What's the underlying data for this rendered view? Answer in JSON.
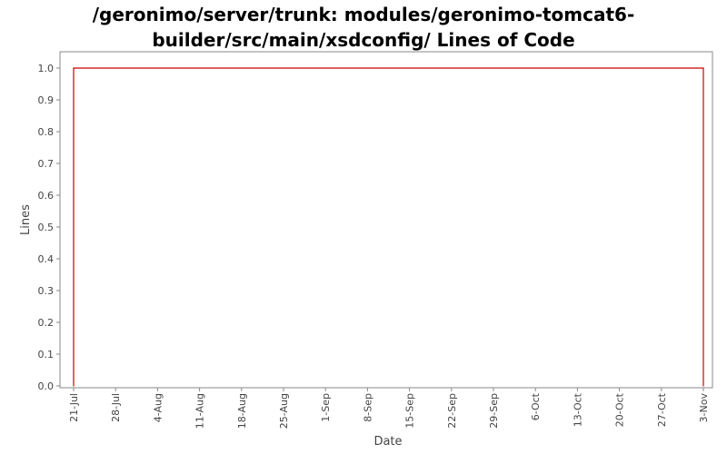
{
  "chart_data": {
    "type": "line",
    "title_lines": [
      "/geronimo/server/trunk: modules/geronimo-tomcat6-",
      "builder/src/main/xsdconfig/ Lines of Code"
    ],
    "xlabel": "Date",
    "ylabel": "Lines",
    "x_ticks": [
      "21-Jul",
      "28-Jul",
      "4-Aug",
      "11-Aug",
      "18-Aug",
      "25-Aug",
      "1-Sep",
      "8-Sep",
      "15-Sep",
      "22-Sep",
      "29-Sep",
      "6-Oct",
      "13-Oct",
      "20-Oct",
      "27-Oct",
      "3-Nov"
    ],
    "y_ticks": [
      "0.0",
      "0.1",
      "0.2",
      "0.3",
      "0.4",
      "0.5",
      "0.6",
      "0.7",
      "0.8",
      "0.9",
      "1.0"
    ],
    "ylim": [
      0,
      1.0
    ],
    "grid": false,
    "series": [
      {
        "color": "#cc0000",
        "points": [
          {
            "x": "21-Jul",
            "y": 0
          },
          {
            "x": "21-Jul",
            "y": 1
          },
          {
            "x": "3-Nov",
            "y": 1
          },
          {
            "x": "3-Nov",
            "y": 0
          }
        ]
      }
    ]
  }
}
